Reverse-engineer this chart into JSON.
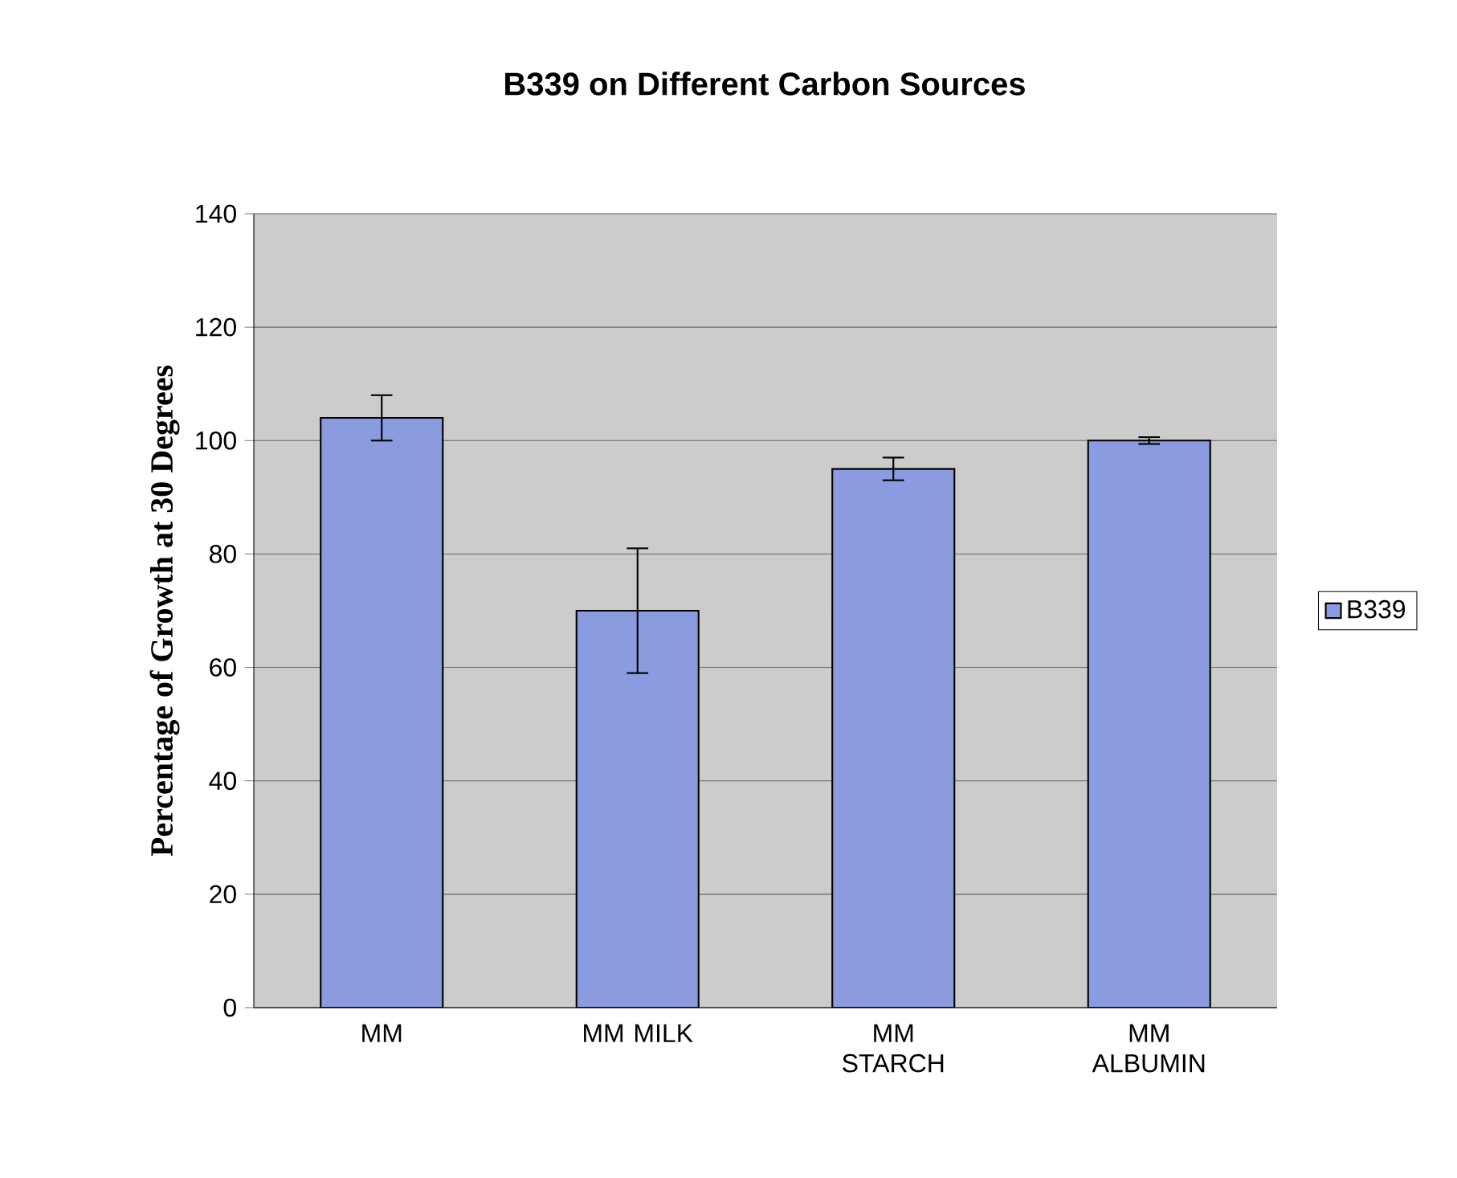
{
  "chart_data": {
    "type": "bar",
    "title": "B339 on Different Carbon Sources",
    "ylabel": "Percentage of Growth at 30 Degrees",
    "categories": [
      "MM",
      "MM MILK",
      "MM STARCH",
      "MM ALBUMIN"
    ],
    "series": [
      {
        "name": "B339",
        "color": "#8a9be0",
        "values": [
          104,
          70,
          95,
          100
        ],
        "errors": [
          4,
          11,
          2,
          0.6
        ]
      }
    ],
    "ylim": [
      0,
      140
    ],
    "yticks": [
      0,
      20,
      40,
      60,
      80,
      100,
      120,
      140
    ],
    "grid": "y",
    "legend": "right"
  }
}
